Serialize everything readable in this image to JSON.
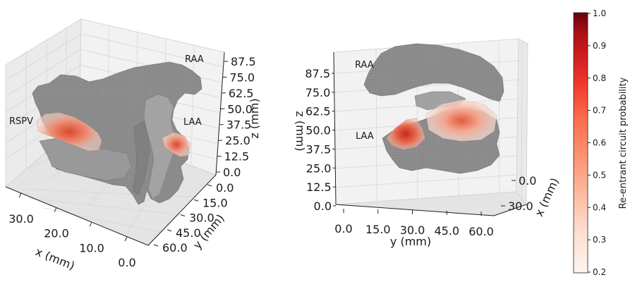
{
  "colors": {
    "tissue": "#8c8c8c",
    "tissue_dark": "#6f6f6f",
    "pane": "#f2f2f2",
    "cmap_low": "#fff5f0",
    "cmap_mid": "#ef3b2c",
    "cmap_high": "#67000d"
  },
  "chart_data": [
    {
      "type": "3d-voxel",
      "view": "left",
      "xlabel": "x (mm)",
      "ylabel": "y (mm)",
      "zlabel": "z (mm)",
      "xticks": [
        "30.0",
        "20.0",
        "10.0",
        "0.0"
      ],
      "yticks": [
        "0.0",
        "15.0",
        "30.0",
        "45.0",
        "60.0"
      ],
      "zticks": [
        "0.0",
        "12.5",
        "25.0",
        "37.5",
        "50.0",
        "62.5",
        "75.0",
        "87.5"
      ],
      "annotations": [
        "RAA",
        "LAA",
        "RSPV"
      ]
    },
    {
      "type": "3d-voxel",
      "view": "right",
      "xlabel": "x (mm)",
      "ylabel": "y (mm)",
      "zlabel": "z (mm)",
      "xticks": [
        "0.0",
        "30.0"
      ],
      "yticks": [
        "0.0",
        "15.0",
        "30.0",
        "45.0",
        "60.0"
      ],
      "zticks": [
        "0.0",
        "12.5",
        "25.0",
        "37.5",
        "50.0",
        "62.5",
        "75.0",
        "87.5"
      ],
      "annotations": [
        "RAA",
        "LAA"
      ]
    }
  ],
  "colorbar": {
    "label": "Re-entrant circuit probability",
    "ticks": [
      "1.0",
      "0.9",
      "0.8",
      "0.7",
      "0.6",
      "0.5",
      "0.4",
      "0.3",
      "0.2"
    ],
    "range": [
      0.2,
      1.0
    ]
  }
}
